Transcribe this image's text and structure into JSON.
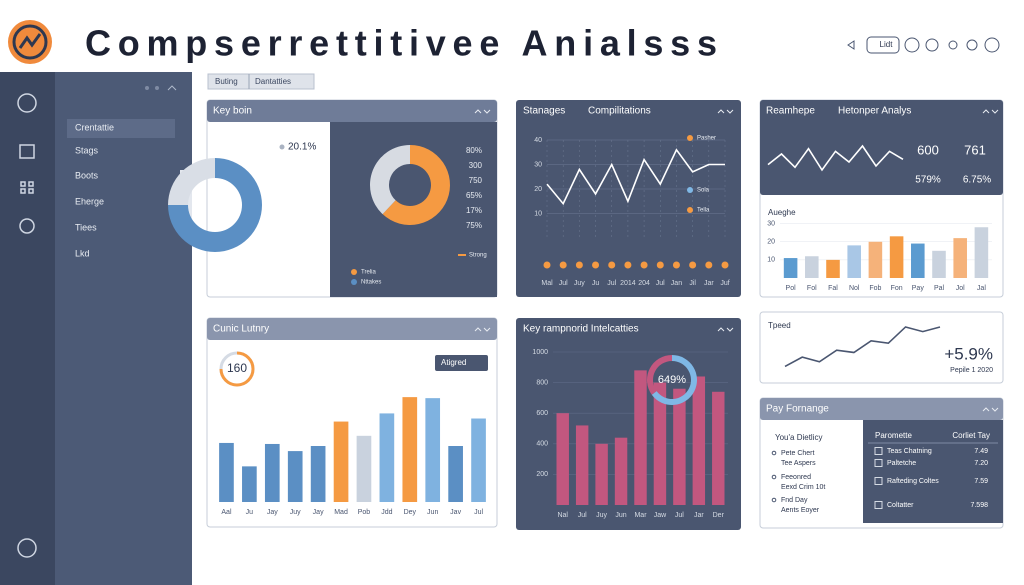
{
  "header": {
    "title": "Compserrettitivee Anialsss",
    "toolbar_label": "Lidt"
  },
  "tabs": [
    "Buting",
    "Dantatties"
  ],
  "sidebar": {
    "items": [
      "Crentattie",
      "Stags",
      "Boots",
      "Eherge",
      "Tiees",
      "Lkd"
    ]
  },
  "panels": {
    "key_boin": {
      "title": "Key boin",
      "left_label": "20.1%",
      "left_donut": {
        "type": "donut",
        "values": [
          75,
          25
        ],
        "colors": [
          "#5b8fc4",
          "#d9dee6"
        ]
      },
      "donut": {
        "type": "donut",
        "values": [
          62,
          38
        ],
        "colors": [
          "#f59a42",
          "#d7dbe2"
        ]
      },
      "stats": [
        "80%",
        "300",
        "750",
        "65%",
        "17%",
        "75%"
      ],
      "legend": [
        "Trelia",
        "Nttakes"
      ],
      "legend_right": "Strong"
    },
    "compilations": {
      "title": "Stanages",
      "subtitle": "Compilitations",
      "chart": {
        "type": "line",
        "values": [
          22,
          14,
          28,
          18,
          30,
          15,
          32,
          22,
          36,
          27,
          30,
          30
        ],
        "categories": [
          "Mal",
          "Jul",
          "Juy",
          "Ju",
          "Jul",
          "2014",
          "204",
          "Jul",
          "Jan",
          "Jil",
          "Jar",
          "Juf"
        ],
        "ylim": [
          0,
          40
        ],
        "yticks": [
          10,
          20,
          30,
          40
        ],
        "color": "#ffffff",
        "grid": true
      },
      "legend": [
        "Pasher",
        "Sola",
        "Tella"
      ]
    },
    "analysis": {
      "title": "Reamhepe",
      "subtitle": "Hetonper Analys",
      "chart": {
        "type": "line",
        "values": [
          10,
          18,
          8,
          22,
          6,
          20,
          12,
          24,
          9,
          20,
          14
        ],
        "ylim": [
          0,
          30
        ],
        "color": "#ffffff"
      },
      "stats": [
        "600",
        "761",
        "579%",
        "6.75%"
      ],
      "bar_title": "Aueghe",
      "bar_chart": {
        "type": "bar",
        "values": [
          11,
          12,
          10,
          18,
          20,
          23,
          19,
          15,
          22,
          28
        ],
        "colors": [
          "#5b9bd0",
          "#c9d2de",
          "#f59a42",
          "#a9c7e6",
          "#f5b27a",
          "#f59a42",
          "#5b9bd0",
          "#c9d2de",
          "#f5b27a",
          "#c9d2de"
        ],
        "categories": [
          "Pol",
          "Fol",
          "Fal",
          "Nol",
          "Fob",
          "Fon",
          "Pay",
          "Pal",
          "Jol",
          "Jal"
        ],
        "ylim": [
          0,
          32
        ],
        "yticks": [
          10,
          20,
          30
        ],
        "grid": true
      }
    },
    "lutnry": {
      "title": "Cunic Lutnry",
      "gauge_label": "160",
      "button": "Atigred",
      "chart": {
        "type": "bar",
        "values": [
          58,
          35,
          57,
          50,
          55,
          79,
          65,
          87,
          103,
          102,
          55,
          82
        ],
        "colors": [
          "#5b8fc4",
          "#5b8fc4",
          "#5b8fc4",
          "#5b8fc4",
          "#5b8fc4",
          "#f59a42",
          "#c9d2de",
          "#7fb2e0",
          "#f59a42",
          "#7fb2e0",
          "#5b8fc4",
          "#7fb2e0"
        ],
        "categories": [
          "Aal",
          "Ju",
          "Jay",
          "Juy",
          "Jay",
          "Mad",
          "Pob",
          "Jdd",
          "Dey",
          "Jun",
          "Jav",
          "Jul"
        ],
        "ylim": [
          0,
          110
        ]
      }
    },
    "intel": {
      "title": "Key rampnorid Intelcatties",
      "donut_label": "649%",
      "donut": {
        "type": "donut",
        "values": [
          65,
          35
        ],
        "colors": [
          "#7fb8e6",
          "#c2577f"
        ]
      },
      "chart": {
        "type": "bar",
        "values": [
          600,
          520,
          400,
          440,
          880,
          800,
          760,
          840,
          740
        ],
        "colors": [
          "#c2577f",
          "#c2577f",
          "#c2577f",
          "#c2577f",
          "#c2577f",
          "#c2577f",
          "#c2577f",
          "#c2577f",
          "#c2577f"
        ],
        "categories": [
          "Nal",
          "Jul",
          "Juy",
          "Jun",
          "Mar",
          "Jaw",
          "Jul",
          "Jar",
          "Der"
        ],
        "ylim": [
          0,
          1000
        ],
        "yticks": [
          200,
          400,
          600,
          800,
          1000
        ],
        "grid": true
      }
    },
    "speed": {
      "title": "Tpeed",
      "stat": "+5.9%",
      "note": "Pepile 1 2020",
      "chart": {
        "type": "line",
        "values": [
          5,
          9,
          7,
          12,
          11,
          16,
          15,
          22,
          20,
          22
        ],
        "ylim": [
          0,
          25
        ],
        "color": "#4a5670"
      }
    },
    "pay": {
      "title": "Pay Fornange",
      "list_title": "You'a Dietlicy",
      "list": [
        "Pete Chert",
        "Tee Aspers",
        "Feeonred",
        "Eexd Crim 10t",
        "Fnd Day",
        "Aents Eoyer"
      ],
      "table": {
        "header": [
          "Paromette",
          "Corliet Tay"
        ],
        "rows": [
          [
            "Teas Chatning",
            "7.49"
          ],
          [
            "Paltetche",
            "7.20"
          ],
          [
            "Rafteding Coltes",
            "7.59"
          ],
          [
            "Coltatter",
            "7.598"
          ]
        ]
      }
    }
  }
}
